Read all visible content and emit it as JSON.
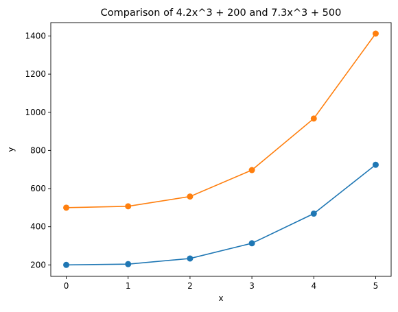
{
  "chart_data": {
    "type": "line",
    "title": "Comparison of 4.2x^3 + 200 and 7.3x^3 + 500",
    "xlabel": "x",
    "ylabel": "y",
    "x": [
      0,
      1,
      2,
      3,
      4,
      5
    ],
    "xticks": [
      0,
      1,
      2,
      3,
      4,
      5
    ],
    "yticks": [
      200,
      400,
      600,
      800,
      1000,
      1200,
      1400
    ],
    "xlim": [
      -0.25,
      5.25
    ],
    "ylim": [
      140,
      1470
    ],
    "grid": false,
    "series": [
      {
        "values": [
          200,
          204.2,
          233.6,
          313.4,
          468.8,
          725
        ],
        "color": "#1f77b4",
        "marker": "circle"
      },
      {
        "values": [
          500,
          507.3,
          558.4,
          697.1,
          967.2,
          1412.5
        ],
        "color": "#ff7f0e",
        "marker": "circle"
      }
    ]
  }
}
